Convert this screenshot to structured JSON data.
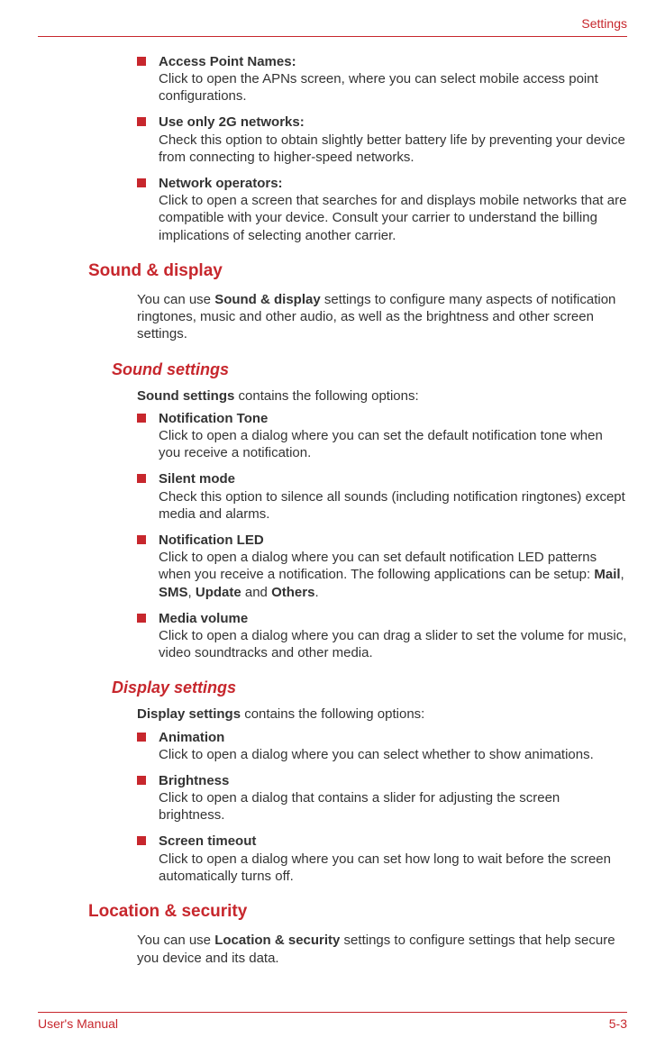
{
  "colors": {
    "accent": "#c7272d",
    "text": "#333333",
    "background": "#ffffff"
  },
  "typography": {
    "body_font": "Arial",
    "body_size_pt": 11,
    "h2_size_pt": 14,
    "h3_size_pt": 13
  },
  "header": {
    "section": "Settings"
  },
  "footer": {
    "left": "User's Manual",
    "right": "5-3"
  },
  "top_list": [
    {
      "title": "Access Point Names:",
      "desc": "Click to open the APNs screen, where you can select mobile access point configurations."
    },
    {
      "title": "Use only 2G networks:",
      "desc": "Check this option to obtain slightly better battery life by preventing your device from connecting to higher-speed networks."
    },
    {
      "title": "Network operators:",
      "desc": "Click to open a screen that searches for and displays mobile networks that are compatible with your device. Consult your carrier to understand the billing implications of selecting another carrier."
    }
  ],
  "sound_display": {
    "heading": "Sound & display",
    "intro_pre": "You can use ",
    "intro_bold": "Sound & display",
    "intro_post": " settings to configure many aspects of notification ringtones, music and other audio, as well as the brightness and other screen settings.",
    "sound": {
      "heading": "Sound settings",
      "intro_bold": "Sound settings",
      "intro_post": " contains the following options:",
      "items": [
        {
          "title": "Notification Tone",
          "desc": "Click to open a dialog where you can set the default notification tone when you receive a notification."
        },
        {
          "title": "Silent mode",
          "desc": "Check this option to silence all sounds (including notification ringtones) except media and alarms."
        },
        {
          "title": "Notification LED",
          "desc_pre": "Click to open a dialog where you can set default notification LED patterns when you receive a notification. The following applications can be setup: ",
          "b1": "Mail",
          "b2": "SMS",
          "b3": "Update",
          "b4": "Others",
          "sep1": ", ",
          "sep2": ", ",
          "sep3": " and ",
          "tail": "."
        },
        {
          "title": "Media volume",
          "desc": "Click to open a dialog where you can drag a slider to set the volume for music, video soundtracks and other media."
        }
      ]
    },
    "display": {
      "heading": "Display settings",
      "intro_bold": "Display settings",
      "intro_post": " contains the following options:",
      "items": [
        {
          "title": "Animation",
          "desc": "Click to open a dialog where you can select whether to show animations."
        },
        {
          "title": "Brightness",
          "desc": "Click to open a dialog that contains a slider for adjusting the screen brightness."
        },
        {
          "title": "Screen timeout",
          "desc": "Click to open a dialog where you can set how long to wait before the screen automatically turns off."
        }
      ]
    }
  },
  "location_security": {
    "heading": "Location & security",
    "intro_pre": "You can use ",
    "intro_bold": "Location & security",
    "intro_post": " settings to configure settings that help secure you device and its data."
  }
}
